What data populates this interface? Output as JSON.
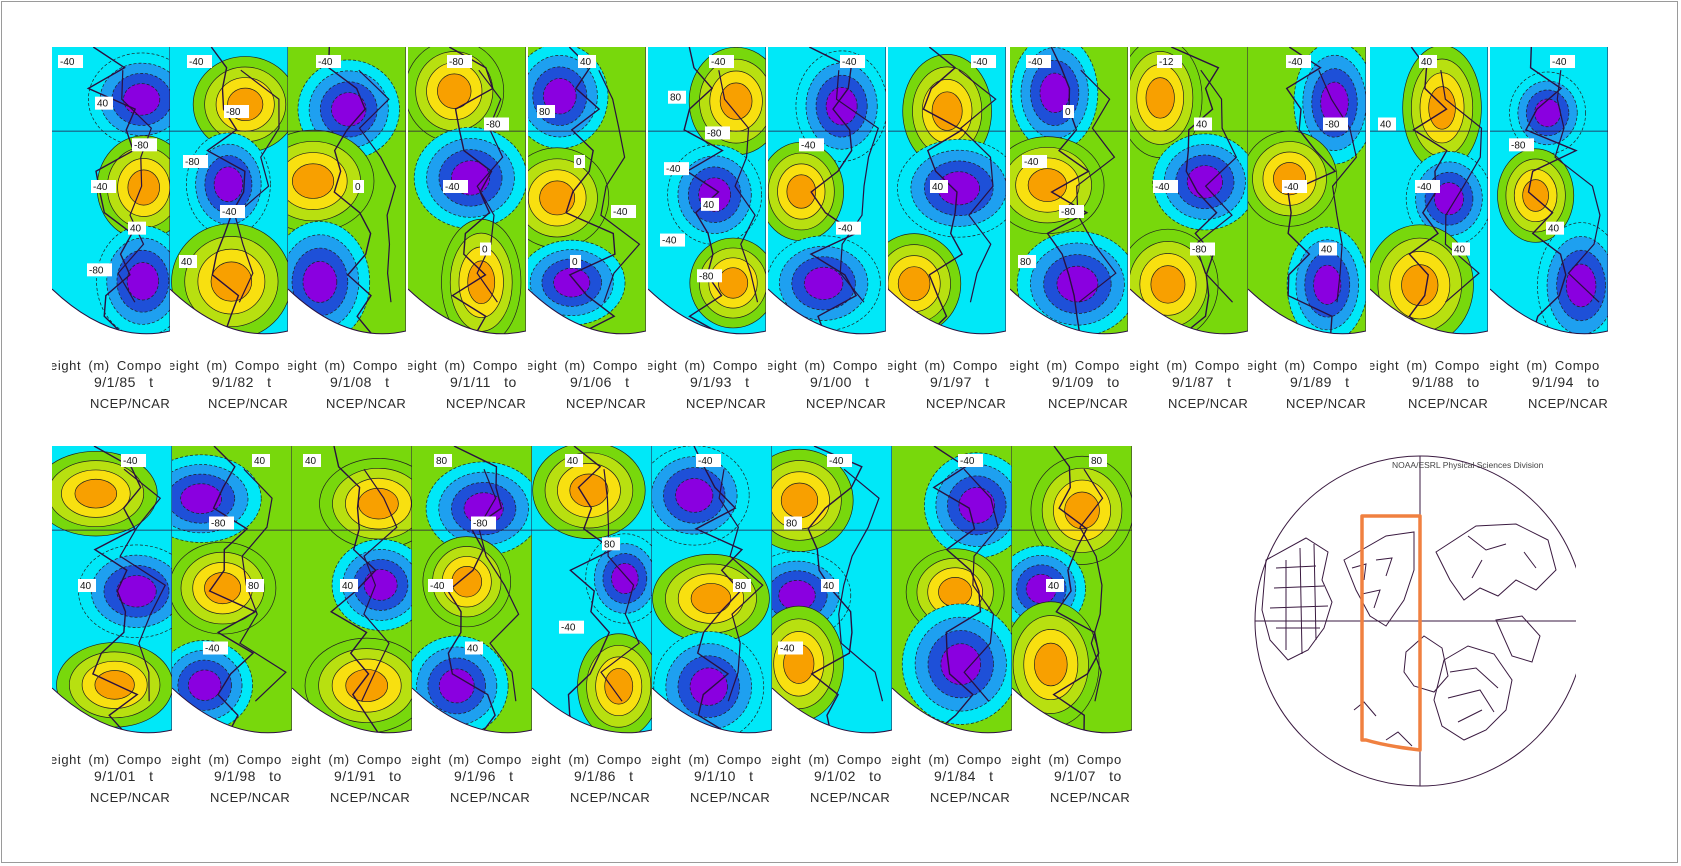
{
  "panels": [
    {
      "row": 0,
      "date": "9/1/85",
      "tail": "t",
      "labels": [
        "-40",
        "40",
        "-80",
        "-40",
        "40",
        "-80"
      ]
    },
    {
      "row": 0,
      "date": "9/1/82",
      "tail": "t",
      "labels": [
        "-40",
        "-80",
        "-80",
        "-40",
        "40"
      ]
    },
    {
      "row": 0,
      "date": "9/1/08",
      "tail": "t",
      "labels": [
        "-40",
        "0"
      ]
    },
    {
      "row": 0,
      "date": "9/1/11",
      "tail": "to",
      "labels": [
        "-80",
        "-80",
        "-40",
        "0"
      ]
    },
    {
      "row": 0,
      "date": "9/1/06",
      "tail": "t",
      "labels": [
        "40",
        "80",
        "0",
        "-40",
        "0"
      ]
    },
    {
      "row": 0,
      "date": "9/1/93",
      "tail": "t",
      "labels": [
        "-40",
        "80",
        "-80",
        "-40",
        "40",
        "-40",
        "-80"
      ]
    },
    {
      "row": 0,
      "date": "9/1/00",
      "tail": "t",
      "labels": [
        "-40",
        "-40",
        "-40"
      ]
    },
    {
      "row": 0,
      "date": "9/1/97",
      "tail": "t",
      "labels": [
        "-40",
        "40"
      ]
    },
    {
      "row": 0,
      "date": "9/1/09",
      "tail": "to",
      "labels": [
        "-40",
        "0",
        "-40",
        "-80",
        "80"
      ]
    },
    {
      "row": 0,
      "date": "9/1/87",
      "tail": "t",
      "labels": [
        "-12",
        "40",
        "-40",
        "-80"
      ]
    },
    {
      "row": 0,
      "date": "9/1/89",
      "tail": "t",
      "labels": [
        "-40",
        "-80",
        "-40",
        "40"
      ]
    },
    {
      "row": 0,
      "date": "9/1/88",
      "tail": "to",
      "labels": [
        "40",
        "40",
        "-40",
        "40"
      ]
    },
    {
      "row": 0,
      "date": "9/1/94",
      "tail": "to",
      "labels": [
        "-40",
        "-80",
        "40"
      ]
    },
    {
      "row": 1,
      "date": "9/1/01",
      "tail": "t",
      "labels": [
        "-40",
        "40"
      ]
    },
    {
      "row": 1,
      "date": "9/1/98",
      "tail": "to",
      "labels": [
        "40",
        "-80",
        "80",
        "-40"
      ]
    },
    {
      "row": 1,
      "date": "9/1/91",
      "tail": "to",
      "labels": [
        "40",
        "40"
      ]
    },
    {
      "row": 1,
      "date": "9/1/96",
      "tail": "t",
      "labels": [
        "80",
        "-80",
        "-40",
        "40"
      ]
    },
    {
      "row": 1,
      "date": "9/1/86",
      "tail": "t",
      "labels": [
        "40",
        "80",
        "-40"
      ]
    },
    {
      "row": 1,
      "date": "9/1/10",
      "tail": "t",
      "labels": [
        "-40",
        "80"
      ]
    },
    {
      "row": 1,
      "date": "9/1/02",
      "tail": "to",
      "labels": [
        "-40",
        "80",
        "40",
        "-40"
      ]
    },
    {
      "row": 1,
      "date": "9/1/84",
      "tail": "t",
      "labels": [
        "-40"
      ]
    },
    {
      "row": 1,
      "date": "9/1/07",
      "tail": "to",
      "labels": [
        "80",
        "40"
      ]
    }
  ],
  "caption_prefix": "eight  (m)  Compo",
  "source_label": "NCEP/NCAR",
  "key_map": {
    "credit": "NOAA/ESRL Physical Sciences Division",
    "highlight_color": "#f08040"
  },
  "colors": {
    "strong_negative": "#d400d4",
    "negative_3": "#8a00e0",
    "negative_2": "#1e50d8",
    "negative_1": "#1ea0f0",
    "near_zero_negative": "#00e8f8",
    "near_zero_positive": "#78d80c",
    "positive_2": "#b8e010",
    "positive_3": "#f8e010",
    "strong_positive": "#f8a000",
    "coast": "#2a1040"
  }
}
